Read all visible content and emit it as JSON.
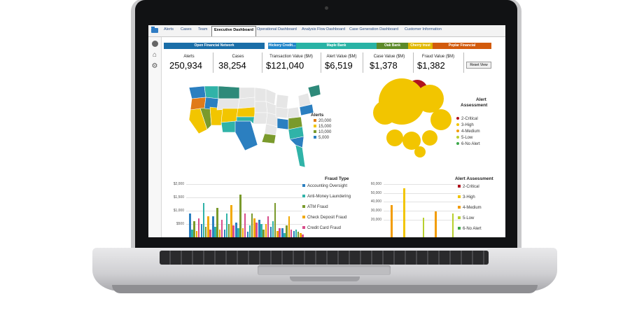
{
  "tabs": [
    {
      "label": "Alerts",
      "active": false
    },
    {
      "label": "Cases",
      "active": false
    },
    {
      "label": "Team",
      "active": false
    },
    {
      "label": "Executive Dashboard",
      "active": true
    },
    {
      "label": "Operational Dashboard",
      "active": false
    },
    {
      "label": "Analysis Flow Dashboard",
      "active": false
    },
    {
      "label": "Case Generation Dashboard",
      "active": false
    },
    {
      "label": "Customer Information",
      "active": false
    }
  ],
  "icons": {
    "folder": "folder-icon",
    "avatar": "avatar-icon",
    "home": "home-icon",
    "settings": "gear-icon"
  },
  "breadcrumb": [
    {
      "label": "Open Financial Network",
      "color": "#1a6ea8"
    },
    {
      "label": "Hickory Credit...",
      "color": "#1f85c9"
    },
    {
      "label": "Maple Bank",
      "color": "#28b3a5"
    },
    {
      "label": "Oak Bank",
      "color": "#5c8a2a"
    },
    {
      "label": "Cherry trust",
      "color": "#e0b800"
    },
    {
      "label": "Poplar Financial",
      "color": "#d25a0c"
    }
  ],
  "kpis": [
    {
      "label": "Alerts",
      "value": "250,934"
    },
    {
      "label": "Cases",
      "value": "38,254"
    },
    {
      "label": "Transaction Value ($M)",
      "value": "$121,040"
    },
    {
      "label": "Alert Value ($M)",
      "value": "$6,519"
    },
    {
      "label": "Case Value ($M)",
      "value": "$1,378"
    },
    {
      "label": "Fraud Value ($M)",
      "value": "$1,382"
    }
  ],
  "reset_label": "Reset View",
  "map_legend": {
    "title": "Alerts",
    "items": [
      {
        "label": "20,000",
        "color": "#e07b1a"
      },
      {
        "label": "15,000",
        "color": "#f2c500"
      },
      {
        "label": "10,000",
        "color": "#7a9a2c"
      },
      {
        "label": "5,000",
        "color": "#2b7fc0"
      }
    ]
  },
  "bubble_legend": {
    "title_line1": "Alert",
    "title_line2": "Assessment",
    "items": [
      {
        "label": "2-Critical",
        "color": "#b0131d"
      },
      {
        "label": "3-High",
        "color": "#f2c500"
      },
      {
        "label": "4-Medium",
        "color": "#f29c00"
      },
      {
        "label": "5-Low",
        "color": "#b8cf2e"
      },
      {
        "label": "6-No Alert",
        "color": "#3da84a"
      }
    ]
  },
  "chart_data": [
    {
      "type": "bar",
      "title": "Fraud Type",
      "ylim": [
        0,
        2000
      ],
      "yticks": [
        "$500",
        "$1,000",
        "$1,500",
        "$2,000"
      ],
      "legend_position": "right",
      "series": [
        {
          "name": "Accounting Oversight",
          "color": "#2b7fc0",
          "values": [
            900,
            500,
            800,
            300,
            550,
            200,
            650,
            400,
            350,
            250
          ]
        },
        {
          "name": "Anti-Money Laundering",
          "color": "#30b3a8",
          "values": [
            300,
            1300,
            400,
            900,
            350,
            450,
            500,
            600,
            150,
            300
          ]
        },
        {
          "name": "ATM Fraud",
          "color": "#7a9a2c",
          "values": [
            600,
            400,
            1100,
            500,
            1600,
            900,
            300,
            1300,
            450,
            200
          ]
        },
        {
          "name": "Check Deposit Fraud",
          "color": "#f2a900",
          "values": [
            250,
            800,
            300,
            1200,
            350,
            700,
            500,
            250,
            800,
            150
          ]
        },
        {
          "name": "Credit Card Fraud",
          "color": "#d84d8b",
          "values": [
            700,
            300,
            650,
            450,
            900,
            550,
            800,
            350,
            300,
            100
          ]
        }
      ]
    },
    {
      "type": "bar",
      "title": "Alert Assessment",
      "ylim": [
        0,
        60000
      ],
      "yticks": [
        "20,000",
        "30,000",
        "40,000",
        "50,000",
        "60,000"
      ],
      "legend_position": "right",
      "series": [
        {
          "name": "2-Critical",
          "color": "#b0131d",
          "values": [
            0,
            0,
            0,
            0,
            0
          ]
        },
        {
          "name": "3-High",
          "color": "#f2c500",
          "values": [
            0,
            55000,
            0,
            0,
            0
          ]
        },
        {
          "name": "4-Medium",
          "color": "#f29c00",
          "values": [
            36000,
            0,
            0,
            29000,
            0
          ]
        },
        {
          "name": "5-Low",
          "color": "#b8cf2e",
          "values": [
            0,
            0,
            22000,
            0,
            27000
          ]
        },
        {
          "name": "6-No Alert",
          "color": "#3da84a",
          "values": [
            0,
            0,
            0,
            0,
            0
          ]
        }
      ]
    }
  ]
}
